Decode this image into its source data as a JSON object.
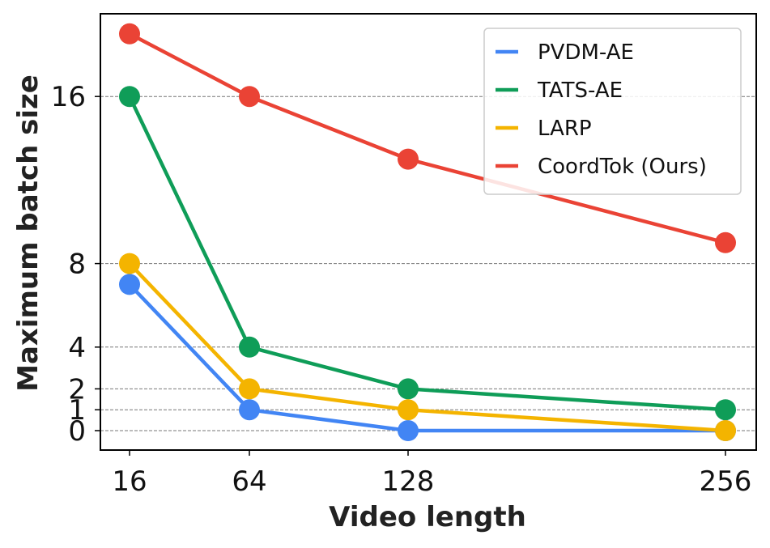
{
  "chart_data": {
    "type": "line",
    "title": "",
    "xlabel": "Video length",
    "ylabel": "Maximum batch size",
    "x": [
      16,
      64,
      128,
      256
    ],
    "x_tick_labels": [
      "16",
      "64",
      "128",
      "256"
    ],
    "y_ticks": [
      0,
      1,
      2,
      4,
      8,
      16
    ],
    "y_tick_labels": [
      "0",
      "1",
      "2",
      "4",
      "8",
      "16"
    ],
    "grid": "horizontal dashed at y ticks",
    "legend_position": "top-right",
    "series": [
      {
        "name": "PVDM-AE",
        "color": "#4285F4",
        "values": [
          7,
          1,
          0,
          0
        ]
      },
      {
        "name": "TATS-AE",
        "color": "#0F9D58",
        "values": [
          16,
          4,
          2,
          1
        ]
      },
      {
        "name": "LARP",
        "color": "#F4B400",
        "values": [
          8,
          2,
          1,
          0
        ]
      },
      {
        "name": "CoordTok (Ours)",
        "color": "#EA4335",
        "values": [
          19,
          16,
          13,
          9
        ]
      }
    ]
  }
}
